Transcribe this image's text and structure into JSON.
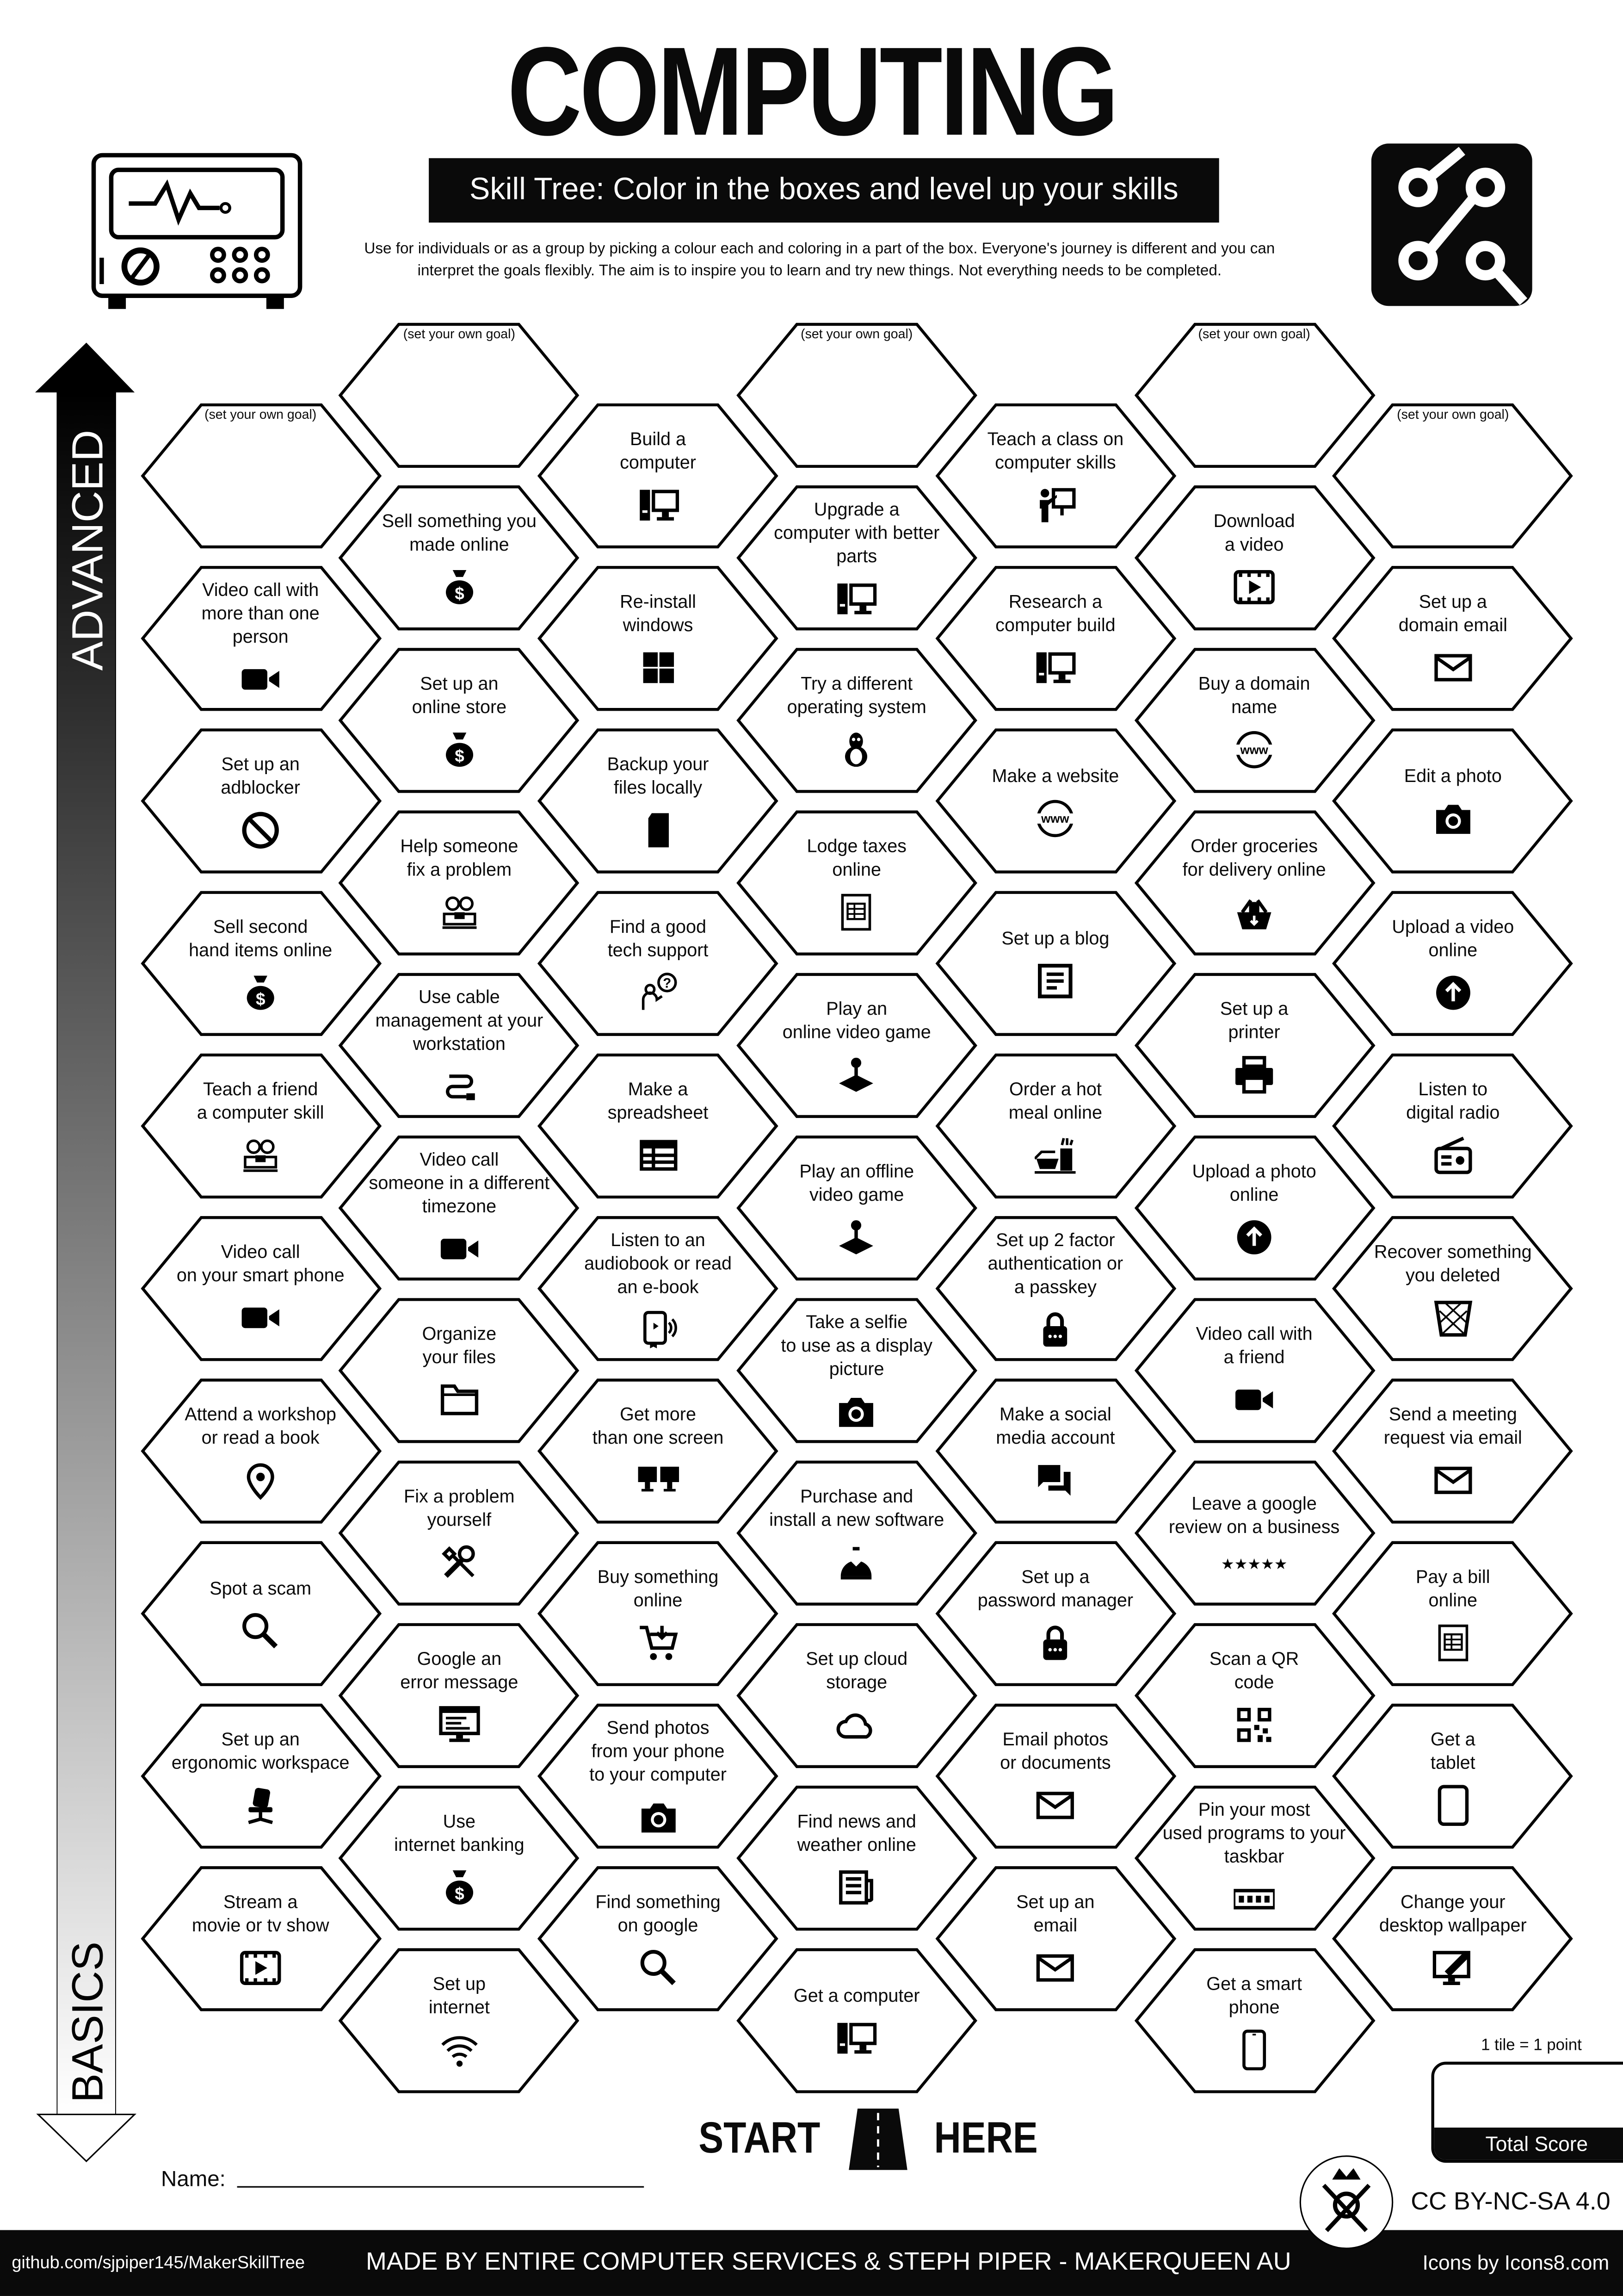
{
  "header": {
    "title": "COMPUTING",
    "subtitle": "Skill Tree:  Color in the boxes and level up your skills",
    "description": "Use for individuals or as a group by picking a colour each and coloring in a part of the box.  Everyone's journey is different and you can\ninterpret the goals flexibly.  The aim is to inspire you to learn and try new things. Not everything needs to be completed.",
    "left_icon": "oscilloscope-icon",
    "right_icon": "circuit-nodes-icon"
  },
  "axis": {
    "top_label": "ADVANCED",
    "bottom_label": "BASICS"
  },
  "columns": [
    [
      {
        "label": "(set your own goal)",
        "icon": "none",
        "goal": true
      },
      {
        "label": "Video call with\nmore than one\nperson",
        "icon": "video-camera"
      },
      {
        "label": "Set up an\nadblocker",
        "icon": "ban"
      },
      {
        "label": "Sell second\nhand items online",
        "icon": "money-bag"
      },
      {
        "label": "Teach a friend\na computer skill",
        "icon": "people-desk"
      },
      {
        "label": "Video call\non your smart phone",
        "icon": "video-camera"
      },
      {
        "label": "Attend a workshop\nor read a book",
        "icon": "location-pin"
      },
      {
        "label": "Spot a scam",
        "icon": "search"
      },
      {
        "label": "Set up an\nergonomic workspace",
        "icon": "office-chair"
      },
      {
        "label": "Stream a\nmovie or tv show",
        "icon": "play-video"
      }
    ],
    [
      {
        "label": "(set your own goal)",
        "icon": "none",
        "goal": true
      },
      {
        "label": "Sell something you\nmade online",
        "icon": "money-bag"
      },
      {
        "label": "Set up an\nonline store",
        "icon": "money-bag"
      },
      {
        "label": "Help someone\nfix a problem",
        "icon": "people-desk"
      },
      {
        "label": "Use cable\nmanagement at your\nworkstation",
        "icon": "cable"
      },
      {
        "label": "Video call\nsomeone in a different\ntimezone",
        "icon": "video-camera"
      },
      {
        "label": "Organize\nyour files",
        "icon": "folder"
      },
      {
        "label": "Fix a problem\nyourself",
        "icon": "tools"
      },
      {
        "label": "Google an\nerror message",
        "icon": "error-screen"
      },
      {
        "label": "Use\ninternet banking",
        "icon": "money-bag"
      },
      {
        "label": "Set up\ninternet",
        "icon": "wifi"
      }
    ],
    [
      {
        "label": "Build a\ncomputer",
        "icon": "computer"
      },
      {
        "label": "Re-install\nwindows",
        "icon": "windows"
      },
      {
        "label": "Backup your\nfiles locally",
        "icon": "sd-card"
      },
      {
        "label": "Find a good\ntech support",
        "icon": "tech-support"
      },
      {
        "label": "Make a\nspreadsheet",
        "icon": "spreadsheet"
      },
      {
        "label": "Listen to an\naudiobook or read\nan e-book",
        "icon": "audiobook"
      },
      {
        "label": "Get more\nthan one screen",
        "icon": "two-monitors"
      },
      {
        "label": "Buy something\nonline",
        "icon": "shopping-cart"
      },
      {
        "label": "Send photos\nfrom your phone\nto your computer",
        "icon": "camera"
      },
      {
        "label": "Find something\non google",
        "icon": "search"
      }
    ],
    [
      {
        "label": "(set your own goal)",
        "icon": "none",
        "goal": true
      },
      {
        "label": "Upgrade a\ncomputer with better\nparts",
        "icon": "computer"
      },
      {
        "label": "Try a different\noperating system",
        "icon": "linux"
      },
      {
        "label": "Lodge taxes\nonline",
        "icon": "tax-form"
      },
      {
        "label": "Play an\nonline video game",
        "icon": "joystick"
      },
      {
        "label": "Play an offline\nvideo game",
        "icon": "joystick"
      },
      {
        "label": "Take a selfie\nto use as a display\npicture",
        "icon": "camera"
      },
      {
        "label": "Purchase and\ninstall a new software",
        "icon": "software-install"
      },
      {
        "label": "Set up cloud\nstorage",
        "icon": "cloud"
      },
      {
        "label": "Find news and\nweather online",
        "icon": "news"
      },
      {
        "label": "Get a computer",
        "icon": "computer"
      }
    ],
    [
      {
        "label": "Teach a class on\ncomputer skills",
        "icon": "presentation"
      },
      {
        "label": "Research a\ncomputer build",
        "icon": "computer"
      },
      {
        "label": "Make a website",
        "icon": "www"
      },
      {
        "label": "Set up a blog",
        "icon": "blog"
      },
      {
        "label": "Order a hot\nmeal online",
        "icon": "hot-meal"
      },
      {
        "label": "Set up 2 factor\nauthentication or\na passkey",
        "icon": "lock"
      },
      {
        "label": "Make a social\nmedia account",
        "icon": "chat"
      },
      {
        "label": "Set up a\npassword manager",
        "icon": "lock"
      },
      {
        "label": "Email photos\nor documents",
        "icon": "mail"
      },
      {
        "label": "Set up an\nemail",
        "icon": "mail"
      }
    ],
    [
      {
        "label": "(set your own goal)",
        "icon": "none",
        "goal": true
      },
      {
        "label": "Download\na video",
        "icon": "play-video"
      },
      {
        "label": "Buy a domain\nname",
        "icon": "www"
      },
      {
        "label": "Order groceries\nfor delivery online",
        "icon": "grocery-basket"
      },
      {
        "label": "Set up a\nprinter",
        "icon": "printer"
      },
      {
        "label": "Upload a photo\nonline",
        "icon": "upload"
      },
      {
        "label": "Video call with\na friend",
        "icon": "video-camera"
      },
      {
        "label": "Leave a google\nreview on a business",
        "icon": "five-stars"
      },
      {
        "label": "Scan a QR\ncode",
        "icon": "qr-code"
      },
      {
        "label": "Pin your most\nused programs to your\ntaskbar",
        "icon": "taskbar"
      },
      {
        "label": "Get a smart\nphone",
        "icon": "smartphone"
      }
    ],
    [
      {
        "label": "(set your own goal)",
        "icon": "none",
        "goal": true
      },
      {
        "label": "Set up a\ndomain email",
        "icon": "mail"
      },
      {
        "label": "Edit a photo",
        "icon": "camera"
      },
      {
        "label": "Upload a video\nonline",
        "icon": "upload"
      },
      {
        "label": "Listen to\ndigital radio",
        "icon": "radio"
      },
      {
        "label": "Recover something\nyou deleted",
        "icon": "trash"
      },
      {
        "label": "Send a meeting\nrequest via email",
        "icon": "mail"
      },
      {
        "label": "Pay a bill\nonline",
        "icon": "tax-form"
      },
      {
        "label": "Get a\ntablet",
        "icon": "tablet"
      },
      {
        "label": "Change your\ndesktop wallpaper",
        "icon": "wallpaper"
      }
    ]
  ],
  "start": {
    "left": "START",
    "right": "HERE",
    "icon": "road-icon"
  },
  "name_label": "Name:",
  "score": {
    "note": "1 tile = 1 point",
    "label": "Total Score"
  },
  "license": "CC BY-NC-SA 4.0",
  "footer": {
    "github": "github.com/sjpiper145/MakerSkillTree",
    "made_by": "MADE BY ENTIRE COMPUTER SERVICES & STEPH PIPER  -  MAKERQUEEN AU",
    "icons_credit": "Icons by Icons8.com"
  },
  "colors": {
    "ink": "#0a0a0a",
    "paper": "#ffffff"
  }
}
